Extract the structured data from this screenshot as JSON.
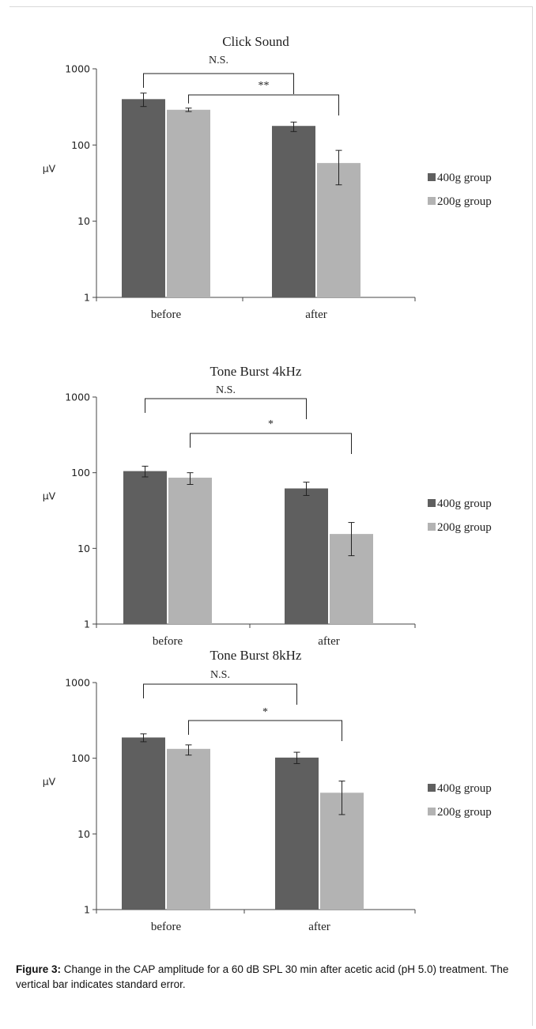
{
  "colors": {
    "g400": "#5f5f5f",
    "g200": "#b3b3b3",
    "axis": "#444444"
  },
  "caption": {
    "label": "Figure 3:",
    "text": "Change in the CAP amplitude for a 60 dB SPL 30 min after acetic acid (pH 5.0) treatment. The vertical bar indicates standard error."
  },
  "chart_data": [
    {
      "type": "bar",
      "title": "Click Sound",
      "ylabel": "μV",
      "yscale": "log",
      "ylim": [
        1,
        1000
      ],
      "yticks": [
        "1",
        "10",
        "100",
        "1000"
      ],
      "categories": [
        "before",
        "after"
      ],
      "legend": "right",
      "series": [
        {
          "name": "400g group",
          "values": [
            400,
            178
          ],
          "errors": [
            [
              320,
              480
            ],
            [
              150,
              200
            ]
          ]
        },
        {
          "name": "200g group",
          "values": [
            290,
            58
          ],
          "errors": [
            [
              275,
              305
            ],
            [
              30,
              85
            ]
          ]
        }
      ],
      "annotations": [
        {
          "text": "N.S.",
          "from": "before/400g group",
          "to": "after/400g group"
        },
        {
          "text": "**",
          "from": "before/200g group",
          "to": "after/200g group"
        }
      ]
    },
    {
      "type": "bar",
      "title": "Tone Burst 4kHz",
      "ylabel": "μV",
      "yscale": "log",
      "ylim": [
        1,
        1000
      ],
      "yticks": [
        "1",
        "10",
        "100",
        "1000"
      ],
      "categories": [
        "before",
        "after"
      ],
      "legend": "right",
      "series": [
        {
          "name": "400g group",
          "values": [
            105,
            62
          ],
          "errors": [
            [
              88,
              122
            ],
            [
              50,
              75
            ]
          ]
        },
        {
          "name": "200g group",
          "values": [
            86,
            15.5
          ],
          "errors": [
            [
              70,
              100
            ],
            [
              8,
              22
            ]
          ]
        }
      ],
      "annotations": [
        {
          "text": "N.S.",
          "from": "before/400g group",
          "to": "after/400g group"
        },
        {
          "text": "*",
          "from": "before/200g group",
          "to": "after/200g group"
        }
      ]
    },
    {
      "type": "bar",
      "title": "Tone Burst 8kHz",
      "ylabel": "μV",
      "yscale": "log",
      "ylim": [
        1,
        1000
      ],
      "yticks": [
        "1",
        "10",
        "100",
        "1000"
      ],
      "categories": [
        "before",
        "after"
      ],
      "legend": "right",
      "series": [
        {
          "name": "400g group",
          "values": [
            188,
            102
          ],
          "errors": [
            [
              165,
              210
            ],
            [
              85,
              120
            ]
          ]
        },
        {
          "name": "200g group",
          "values": [
            133,
            35
          ],
          "errors": [
            [
              110,
              150
            ],
            [
              18,
              50
            ]
          ]
        }
      ],
      "annotations": [
        {
          "text": "N.S.",
          "from": "before/400g group",
          "to": "after/400g group"
        },
        {
          "text": "*",
          "from": "before/200g group",
          "to": "after/200g group"
        }
      ]
    }
  ]
}
